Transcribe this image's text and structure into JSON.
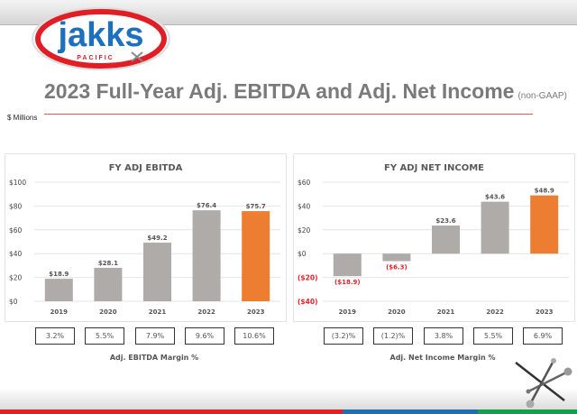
{
  "header": {
    "logo_text": "jakks",
    "logo_subtext": "PACIFIC",
    "title": "2023 Full-Year Adj. EBITDA and Adj. Net Income",
    "title_suffix": "(non-GAAP)",
    "units": "$ Millions"
  },
  "colors": {
    "bar_gray": "#aeaba8",
    "bar_highlight": "#ed7d31",
    "negative_text": "#e8202a",
    "stripe_red": "#e81e25",
    "stripe_blue": "#1f6fb7",
    "stripe_green": "#12a14b"
  },
  "chart_data": [
    {
      "type": "bar",
      "title": "FY ADJ EBITDA",
      "categories": [
        "2019",
        "2020",
        "2021",
        "2022",
        "2023"
      ],
      "values": [
        18.9,
        28.1,
        49.2,
        76.4,
        75.7
      ],
      "value_labels": [
        "$18.9",
        "$28.1",
        "$49.2",
        "$76.4",
        "$75.7"
      ],
      "highlight_index": 4,
      "yticks": [
        "$100",
        "$80",
        "$60",
        "$40",
        "$20",
        "$0"
      ],
      "ylim": [
        0,
        100
      ],
      "xlabel": "",
      "ylabel": "",
      "grid": true,
      "legend": null
    },
    {
      "type": "bar",
      "title": "FY ADJ NET INCOME",
      "categories": [
        "2019",
        "2020",
        "2021",
        "2022",
        "2023"
      ],
      "values": [
        -18.9,
        -6.3,
        23.6,
        43.6,
        48.9
      ],
      "value_labels": [
        "($18.9)",
        "($6.3)",
        "$23.6",
        "$43.6",
        "$48.9"
      ],
      "highlight_index": 4,
      "yticks": [
        "$60",
        "$40",
        "$20",
        "$0",
        "($20)",
        "($40)"
      ],
      "ylim": [
        -40,
        60
      ],
      "xlabel": "",
      "ylabel": "",
      "grid": true,
      "legend": null
    }
  ],
  "ebitda_margin": {
    "label": "Adj. EBITDA Margin %",
    "values": [
      "3.2%",
      "5.5%",
      "7.9%",
      "9.6%",
      "10.6%"
    ]
  },
  "net_income_margin": {
    "label": "Adj. Net Income Margin %",
    "values": [
      "(3.2)%",
      "(1.2)%",
      "3.8%",
      "5.5%",
      "6.9%"
    ]
  }
}
